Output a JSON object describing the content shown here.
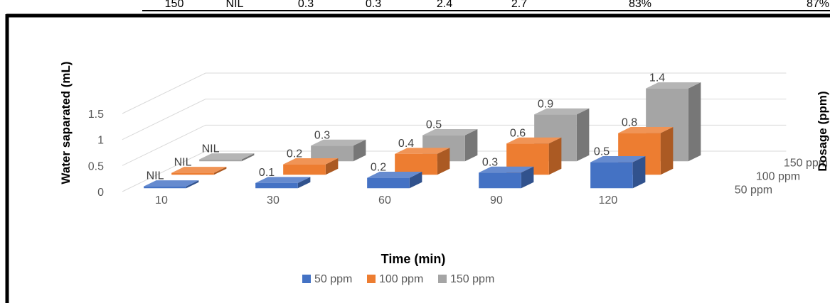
{
  "top_table_fragment": {
    "cells": [
      "150",
      "NIL",
      "0.3",
      "0.3",
      "2.4",
      "2.7",
      "83%",
      "87%"
    ]
  },
  "chart_data": {
    "type": "bar",
    "subtype": "3d-clustered-column",
    "categories": [
      "10",
      "30",
      "60",
      "90",
      "120"
    ],
    "series": [
      {
        "name": "50 ppm",
        "values": [
          0,
          0.1,
          0.2,
          0.3,
          0.5
        ],
        "labels": [
          "NIL",
          "0.1",
          "0.2",
          "0.3",
          "0.5"
        ]
      },
      {
        "name": "100 ppm",
        "values": [
          0,
          0.2,
          0.4,
          0.6,
          0.8
        ],
        "labels": [
          "NIL",
          "0.2",
          "0.4",
          "0.6",
          "0.8"
        ]
      },
      {
        "name": "150 ppm",
        "values": [
          0,
          0.3,
          0.5,
          0.9,
          1.4
        ],
        "labels": [
          "NIL",
          "0.3",
          "0.5",
          "0.9",
          "1.4"
        ]
      }
    ],
    "xlabel": "Time (min)",
    "ylabel": "Water saparated (mL)",
    "zlabel": "Dosage (ppm)",
    "depth_labels": [
      "50 ppm",
      "100 ppm",
      "150 ppm"
    ],
    "y_ticks": [
      "0",
      "0.5",
      "1",
      "1.5"
    ],
    "ylim": [
      0,
      1.5
    ],
    "grid": true,
    "legend_position": "bottom",
    "colors": {
      "50 ppm": "#4472c4",
      "100 ppm": "#ed7d31",
      "150 ppm": "#a5a5a5"
    }
  }
}
